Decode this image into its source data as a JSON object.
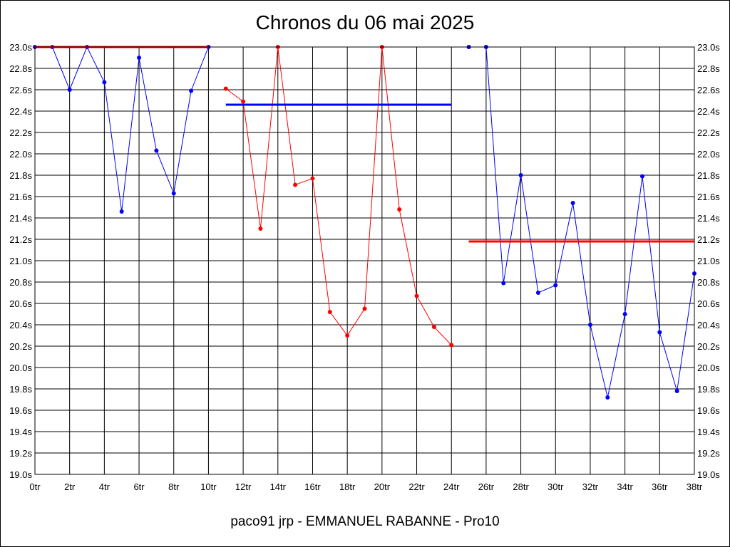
{
  "chart_data": {
    "type": "line",
    "title": "Chronos du 06 mai 2025",
    "footer": "paco91 jrp - EMMANUEL RABANNE - Pro10",
    "xlim": [
      0,
      38
    ],
    "ylim": [
      19.0,
      23.0
    ],
    "x_ticks": [
      {
        "value": 0,
        "label": "0tr"
      },
      {
        "value": 2,
        "label": "2tr"
      },
      {
        "value": 4,
        "label": "4tr"
      },
      {
        "value": 6,
        "label": "6tr"
      },
      {
        "value": 8,
        "label": "8tr"
      },
      {
        "value": 10,
        "label": "10tr"
      },
      {
        "value": 12,
        "label": "12tr"
      },
      {
        "value": 14,
        "label": "14tr"
      },
      {
        "value": 16,
        "label": "16tr"
      },
      {
        "value": 18,
        "label": "18tr"
      },
      {
        "value": 20,
        "label": "20tr"
      },
      {
        "value": 22,
        "label": "22tr"
      },
      {
        "value": 24,
        "label": "24tr"
      },
      {
        "value": 26,
        "label": "26tr"
      },
      {
        "value": 28,
        "label": "28tr"
      },
      {
        "value": 30,
        "label": "30tr"
      },
      {
        "value": 32,
        "label": "32tr"
      },
      {
        "value": 34,
        "label": "34tr"
      },
      {
        "value": 36,
        "label": "36tr"
      },
      {
        "value": 38,
        "label": "38tr"
      }
    ],
    "y_ticks": [
      {
        "value": 23.0,
        "label": "23.0s"
      },
      {
        "value": 22.8,
        "label": "22.8s"
      },
      {
        "value": 22.6,
        "label": "22.6s"
      },
      {
        "value": 22.4,
        "label": "22.4s"
      },
      {
        "value": 22.2,
        "label": "22.2s"
      },
      {
        "value": 22.0,
        "label": "22.0s"
      },
      {
        "value": 21.8,
        "label": "21.8s"
      },
      {
        "value": 21.6,
        "label": "21.6s"
      },
      {
        "value": 21.4,
        "label": "21.4s"
      },
      {
        "value": 21.2,
        "label": "21.2s"
      },
      {
        "value": 21.0,
        "label": "21.0s"
      },
      {
        "value": 20.8,
        "label": "20.8s"
      },
      {
        "value": 20.6,
        "label": "20.6s"
      },
      {
        "value": 20.4,
        "label": "20.4s"
      },
      {
        "value": 20.2,
        "label": "20.2s"
      },
      {
        "value": 20.0,
        "label": "20.0s"
      },
      {
        "value": 19.8,
        "label": "19.8s"
      },
      {
        "value": 19.6,
        "label": "19.6s"
      },
      {
        "value": 19.4,
        "label": "19.4s"
      },
      {
        "value": 19.2,
        "label": "19.2s"
      },
      {
        "value": 19.0,
        "label": "19.0s"
      }
    ],
    "grid": true,
    "series": [
      {
        "color": "#0000ff",
        "x": [
          0,
          1,
          2,
          3,
          4,
          5,
          6,
          7,
          8,
          9,
          10
        ],
        "y": [
          23.0,
          23.0,
          22.6,
          23.0,
          22.67,
          21.46,
          22.9,
          22.03,
          21.63,
          22.59,
          23.0
        ]
      },
      {
        "color": "#ff0000",
        "x": [
          11,
          12,
          13,
          14,
          15,
          16,
          17,
          18,
          19,
          20,
          21,
          22,
          23,
          24
        ],
        "y": [
          22.61,
          22.49,
          21.3,
          23.0,
          21.71,
          21.77,
          20.52,
          20.3,
          20.55,
          23.0,
          21.48,
          20.67,
          20.38,
          20.21
        ]
      },
      {
        "color": "#0000ff",
        "x": [
          25,
          26,
          27,
          28,
          29,
          30,
          31,
          32,
          33,
          34,
          35,
          36,
          37,
          38
        ],
        "y": [
          23.0,
          23.0,
          20.79,
          21.8,
          20.7,
          20.77,
          21.54,
          20.4,
          19.72,
          20.5,
          21.79,
          20.33,
          19.78,
          20.88
        ]
      }
    ],
    "reference_lines": [
      {
        "color": "#ff0000",
        "x_start": 0,
        "x_end": 10,
        "y": 23.0
      },
      {
        "color": "#0000ff",
        "x_start": 11,
        "x_end": 24,
        "y": 22.46
      },
      {
        "color": "#ff0000",
        "x_start": 25,
        "x_end": 38,
        "y": 21.18
      }
    ]
  }
}
